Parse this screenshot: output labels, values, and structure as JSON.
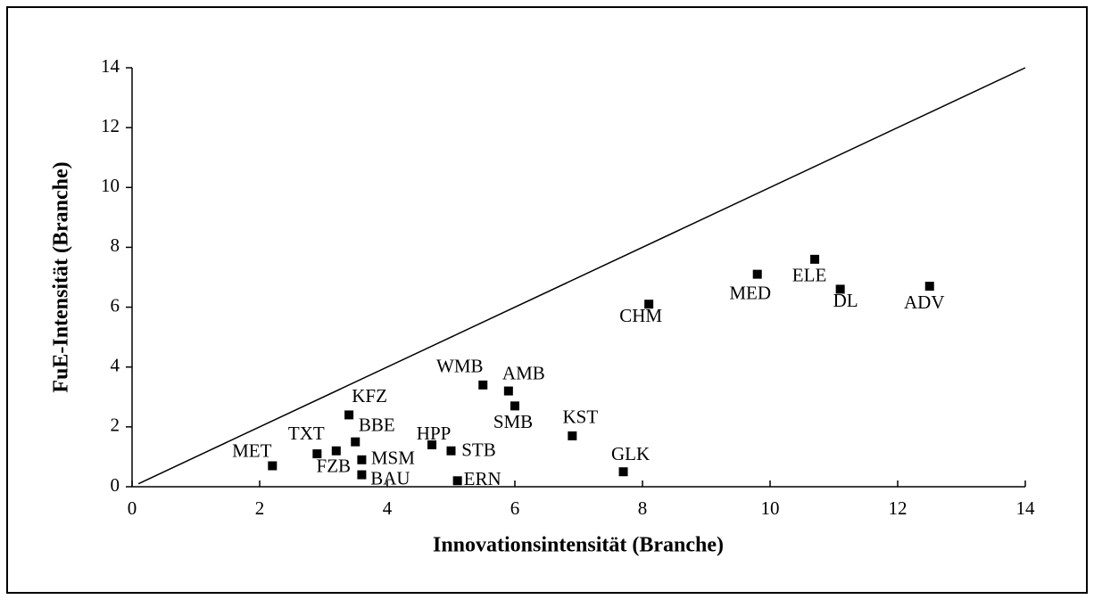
{
  "chart_data": {
    "type": "scatter",
    "xlabel": "Innovationsintensität (Branche)",
    "ylabel": "FuE-Intensität (Branche)",
    "labels": [
      "MET",
      "TXT",
      "FZB",
      "KFZ",
      "BBE",
      "MSM",
      "BAU",
      "HPP",
      "STB",
      "ERN",
      "WMB",
      "AMB",
      "SMB",
      "KST",
      "GLK",
      "CHM",
      "MED",
      "ELE",
      "DL",
      "ADV"
    ],
    "x": [
      2.2,
      2.9,
      3.2,
      3.4,
      3.5,
      3.6,
      3.6,
      4.7,
      5.0,
      5.1,
      5.5,
      5.9,
      6.0,
      6.9,
      7.7,
      8.1,
      9.8,
      10.7,
      11.1,
      12.5
    ],
    "y": [
      0.7,
      1.1,
      1.2,
      2.4,
      1.5,
      0.9,
      0.4,
      1.4,
      1.2,
      0.2,
      3.4,
      3.2,
      2.7,
      1.7,
      0.5,
      6.1,
      7.1,
      7.6,
      6.6,
      6.7
    ],
    "color": "#000000",
    "reference_line": {
      "x": [
        0.1,
        14
      ],
      "y": [
        0.1,
        14
      ]
    },
    "xlim": [
      0,
      14
    ],
    "xticks": [
      0,
      2,
      4,
      6,
      8,
      10,
      12,
      14
    ],
    "ylim": [
      0,
      14
    ],
    "yticks": [
      0,
      2,
      4,
      6,
      8,
      10,
      12,
      14
    ]
  }
}
